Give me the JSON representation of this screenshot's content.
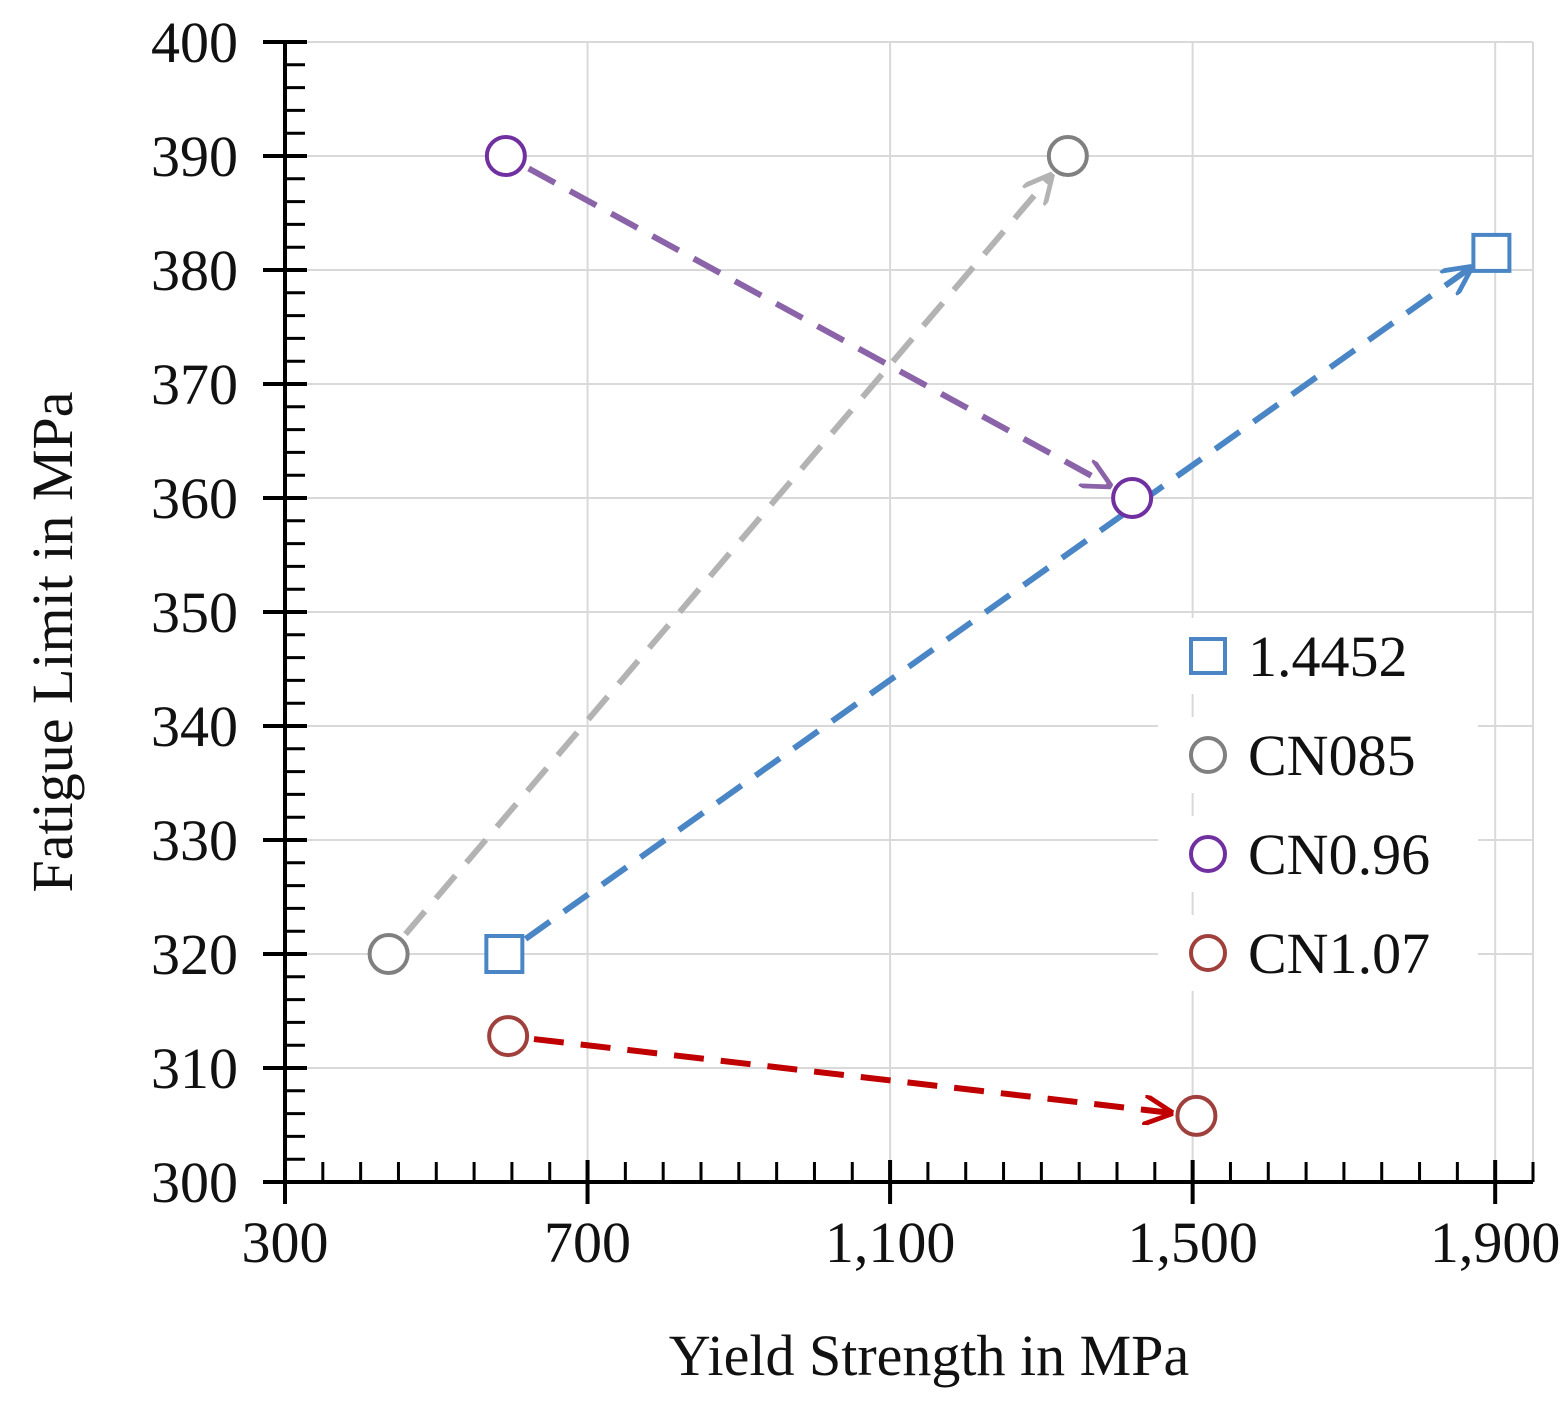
{
  "chart_data": {
    "type": "scatter",
    "xlabel": "Yield Strength in MPa",
    "ylabel": "Fatigue Limit in MPa",
    "xlim": [
      300,
      1950
    ],
    "ylim": [
      300,
      400
    ],
    "x_ticks": [
      300,
      700,
      1100,
      1500,
      1900
    ],
    "x_tick_labels": [
      "300",
      "700",
      "1,100",
      "1,500",
      "1,900"
    ],
    "y_ticks": [
      300,
      310,
      320,
      330,
      340,
      350,
      360,
      370,
      380,
      390,
      400
    ],
    "y_tick_labels": [
      "300",
      "310",
      "320",
      "330",
      "340",
      "350",
      "360",
      "370",
      "380",
      "390",
      "400"
    ],
    "grid": true,
    "legend_position": "right",
    "series": [
      {
        "name": "1.4452",
        "marker": "square",
        "color": "#4a86c5",
        "arrow_color": "#4a86c5",
        "points": [
          {
            "x": 590,
            "y": 320
          },
          {
            "x": 1895,
            "y": 381.5
          }
        ]
      },
      {
        "name": "CN085",
        "marker": "circle",
        "color": "#808080",
        "arrow_color": "#b3b3b3",
        "points": [
          {
            "x": 437,
            "y": 320
          },
          {
            "x": 1335,
            "y": 390
          }
        ]
      },
      {
        "name": "CN0.96",
        "marker": "circle",
        "color": "#7030a0",
        "arrow_color": "#8a63a8",
        "points": [
          {
            "x": 592,
            "y": 390
          },
          {
            "x": 1420,
            "y": 360
          }
        ]
      },
      {
        "name": "CN1.07",
        "marker": "circle",
        "color": "#a0403c",
        "arrow_color": "#c00000",
        "points": [
          {
            "x": 595,
            "y": 312.8
          },
          {
            "x": 1505,
            "y": 305.8
          }
        ]
      }
    ]
  }
}
